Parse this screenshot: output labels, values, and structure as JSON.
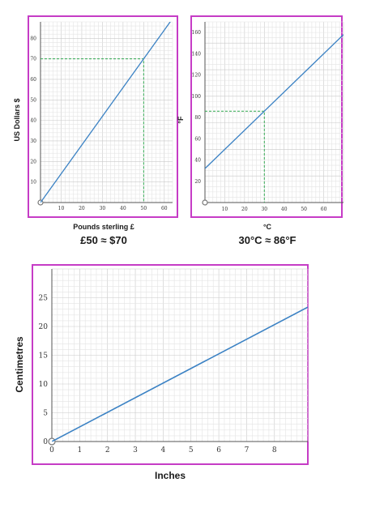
{
  "colors": {
    "frame": "#c63cc6",
    "grid_minor": "#e4e4e4",
    "grid_major": "#c9c9c9",
    "line": "#3b82c4",
    "guide": "#2fa84f",
    "axis": "#555555"
  },
  "chart_data": [
    {
      "type": "line",
      "title": "",
      "xlabel": "Pounds sterling £",
      "ylabel": "US Dollars $",
      "caption": "£50 ≈ $70",
      "xlim": [
        0,
        64
      ],
      "ylim": [
        0,
        88
      ],
      "xticks": [
        10,
        20,
        30,
        40,
        50,
        60
      ],
      "yticks": [
        10,
        20,
        30,
        40,
        50,
        60,
        70,
        80
      ],
      "grid": true,
      "series": [
        {
          "x": [
            0,
            64
          ],
          "y": [
            0,
            89.6
          ]
        }
      ],
      "guide": {
        "x": 50,
        "y": 70
      }
    },
    {
      "type": "line",
      "title": "",
      "xlabel": "°C",
      "ylabel": "°F",
      "caption": "30°C ≈ 86°F",
      "xlim": [
        0,
        70
      ],
      "ylim": [
        0,
        170
      ],
      "xticks": [
        10,
        20,
        30,
        40,
        50,
        60
      ],
      "yticks": [
        20,
        40,
        60,
        80,
        100,
        120,
        140,
        160
      ],
      "grid": true,
      "series": [
        {
          "x": [
            0,
            70
          ],
          "y": [
            32,
            158
          ]
        }
      ],
      "guide": {
        "x": 30,
        "y": 86
      }
    },
    {
      "type": "line",
      "title": "",
      "xlabel": "Inches",
      "ylabel": "Centimetres",
      "xlim": [
        0,
        9.2
      ],
      "ylim": [
        0,
        30
      ],
      "xticks": [
        0,
        1,
        2,
        3,
        4,
        5,
        6,
        7,
        8
      ],
      "yticks": [
        0,
        5,
        10,
        15,
        20,
        25
      ],
      "grid": true,
      "series": [
        {
          "x": [
            0,
            9.2
          ],
          "y": [
            0,
            23.37
          ]
        }
      ]
    }
  ]
}
